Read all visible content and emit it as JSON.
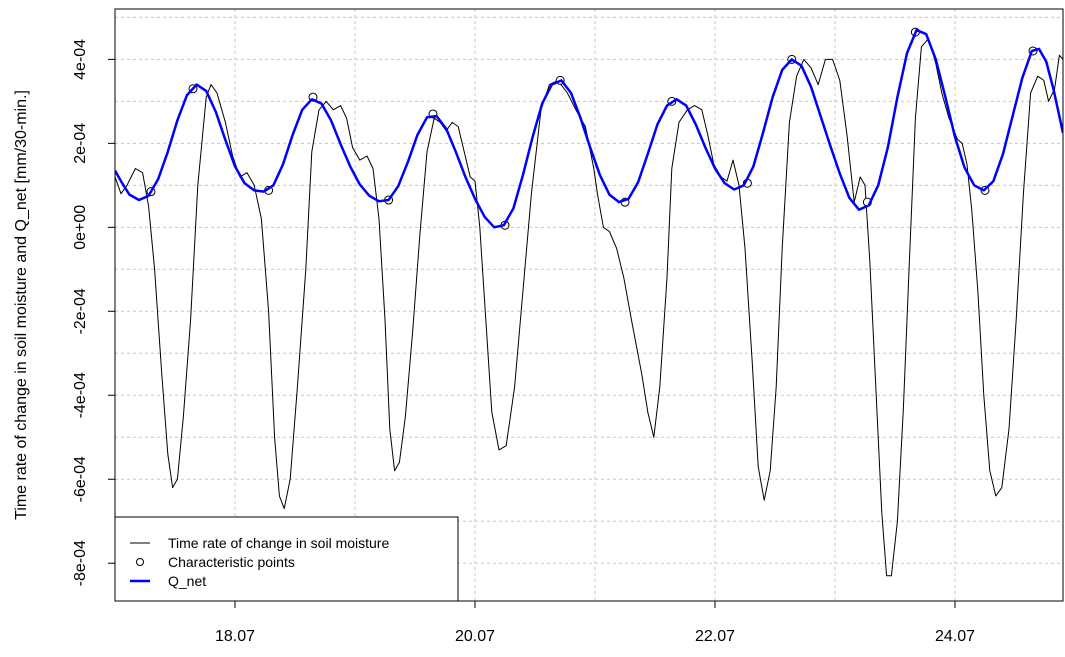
{
  "chart_data": {
    "type": "line",
    "title": "",
    "xlabel": "",
    "ylabel": "Time rate of change in soil moisture and Q_net [mm/30-min.]",
    "x_ticks": [
      "18.07",
      "20.07",
      "22.07",
      "24.07"
    ],
    "x_tick_values": [
      18,
      20,
      22,
      24
    ],
    "xlim": [
      17.0,
      24.9
    ],
    "ylim": [
      -0.00089,
      0.00052
    ],
    "y_ticks": [
      -0.0008,
      -0.0006,
      -0.0004,
      -0.0002,
      0.0,
      0.0002,
      0.0004
    ],
    "y_tick_labels": [
      "-8e-04",
      "-6e-04",
      "-4e-04",
      "-2e-04",
      "0e+00",
      "2e-04",
      "4e-04"
    ],
    "grid": true,
    "legend_position": "bottom-left",
    "series": [
      {
        "name": "Time rate of change in soil moisture",
        "color": "#000000",
        "style": "thin-line",
        "points": [
          [
            17.0,
            0.00012
          ],
          [
            17.05,
            8e-05
          ],
          [
            17.1,
            0.0001
          ],
          [
            17.17,
            0.00014
          ],
          [
            17.23,
            0.00013
          ],
          [
            17.28,
            5e-05
          ],
          [
            17.33,
            -0.0001
          ],
          [
            17.39,
            -0.00035
          ],
          [
            17.44,
            -0.00054
          ],
          [
            17.48,
            -0.00062
          ],
          [
            17.52,
            -0.0006
          ],
          [
            17.57,
            -0.00045
          ],
          [
            17.63,
            -0.00022
          ],
          [
            17.69,
            0.0001
          ],
          [
            17.76,
            0.00031
          ],
          [
            17.8,
            0.00034
          ],
          [
            17.85,
            0.00032
          ],
          [
            17.92,
            0.00025
          ],
          [
            17.98,
            0.00017
          ],
          [
            18.04,
            0.00012
          ],
          [
            18.1,
            0.00013
          ],
          [
            18.16,
            0.0001
          ],
          [
            18.22,
            2e-05
          ],
          [
            18.28,
            -0.0002
          ],
          [
            18.33,
            -0.0005
          ],
          [
            18.37,
            -0.00064
          ],
          [
            18.41,
            -0.00067
          ],
          [
            18.46,
            -0.0006
          ],
          [
            18.52,
            -0.00038
          ],
          [
            18.59,
            -0.0001
          ],
          [
            18.64,
            0.00018
          ],
          [
            18.7,
            0.00028
          ],
          [
            18.76,
            0.0003
          ],
          [
            18.82,
            0.00028
          ],
          [
            18.88,
            0.00029
          ],
          [
            18.93,
            0.00026
          ],
          [
            18.98,
            0.00019
          ],
          [
            19.04,
            0.00016
          ],
          [
            19.1,
            0.00017
          ],
          [
            19.15,
            0.00014
          ],
          [
            19.2,
            2e-05
          ],
          [
            19.25,
            -0.00022
          ],
          [
            19.29,
            -0.00048
          ],
          [
            19.33,
            -0.00058
          ],
          [
            19.37,
            -0.00056
          ],
          [
            19.42,
            -0.00045
          ],
          [
            19.48,
            -0.00025
          ],
          [
            19.54,
            -2e-05
          ],
          [
            19.6,
            0.00018
          ],
          [
            19.66,
            0.00026
          ],
          [
            19.71,
            0.00025
          ],
          [
            19.76,
            0.00023
          ],
          [
            19.81,
            0.00025
          ],
          [
            19.86,
            0.00024
          ],
          [
            19.91,
            0.00018
          ],
          [
            19.96,
            0.00012
          ],
          [
            20.0,
            0.00011
          ],
          [
            20.04,
            0.0
          ],
          [
            20.09,
            -0.00022
          ],
          [
            20.14,
            -0.00044
          ],
          [
            20.2,
            -0.00053
          ],
          [
            20.26,
            -0.00052
          ],
          [
            20.33,
            -0.00038
          ],
          [
            20.4,
            -0.00015
          ],
          [
            20.47,
            8e-05
          ],
          [
            20.55,
            0.00028
          ],
          [
            20.62,
            0.00034
          ],
          [
            20.69,
            0.00035
          ],
          [
            20.77,
            0.00032
          ],
          [
            20.84,
            0.00028
          ],
          [
            20.92,
            0.00024
          ],
          [
            20.99,
            0.00014
          ],
          [
            21.02,
            8e-05
          ],
          [
            21.07,
            0.0
          ],
          [
            21.12,
            -1e-05
          ],
          [
            21.18,
            -5e-05
          ],
          [
            21.24,
            -0.00012
          ],
          [
            21.31,
            -0.00023
          ],
          [
            21.39,
            -0.00035
          ],
          [
            21.44,
            -0.00044
          ],
          [
            21.49,
            -0.0005
          ],
          [
            21.54,
            -0.00038
          ],
          [
            21.6,
            -0.00012
          ],
          [
            21.64,
            0.00014
          ],
          [
            21.7,
            0.00025
          ],
          [
            21.77,
            0.00028
          ],
          [
            21.83,
            0.00029
          ],
          [
            21.89,
            0.00028
          ],
          [
            21.94,
            0.00022
          ],
          [
            21.99,
            0.00015
          ],
          [
            22.05,
            0.00012
          ],
          [
            22.1,
            0.00011
          ],
          [
            22.15,
            0.00016
          ],
          [
            22.2,
            0.0001
          ],
          [
            22.25,
            -5e-05
          ],
          [
            22.31,
            -0.00032
          ],
          [
            22.36,
            -0.00057
          ],
          [
            22.41,
            -0.00065
          ],
          [
            22.46,
            -0.00058
          ],
          [
            22.51,
            -0.00038
          ],
          [
            22.56,
            -5e-05
          ],
          [
            22.62,
            0.00025
          ],
          [
            22.68,
            0.00036
          ],
          [
            22.74,
            0.0004
          ],
          [
            22.8,
            0.00038
          ],
          [
            22.86,
            0.00034
          ],
          [
            22.92,
            0.0004
          ],
          [
            22.98,
            0.0004
          ],
          [
            23.04,
            0.00035
          ],
          [
            23.1,
            0.00022
          ],
          [
            23.16,
            6e-05
          ],
          [
            23.21,
            0.00012
          ],
          [
            23.25,
            0.0001
          ],
          [
            23.29,
            -8e-05
          ],
          [
            23.34,
            -0.00038
          ],
          [
            23.39,
            -0.00068
          ],
          [
            23.43,
            -0.00083
          ],
          [
            23.47,
            -0.00083
          ],
          [
            23.52,
            -0.0007
          ],
          [
            23.57,
            -0.00043
          ],
          [
            23.62,
            -8e-05
          ],
          [
            23.67,
            0.00026
          ],
          [
            23.72,
            0.00043
          ],
          [
            23.78,
            0.00045
          ],
          [
            23.84,
            0.00039
          ],
          [
            23.89,
            0.00032
          ],
          [
            23.95,
            0.00026
          ],
          [
            24.02,
            0.00021
          ],
          [
            24.06,
            0.0002
          ],
          [
            24.1,
            0.00015
          ],
          [
            24.14,
            4e-05
          ],
          [
            24.19,
            -0.00015
          ],
          [
            24.24,
            -0.0004
          ],
          [
            24.29,
            -0.00058
          ],
          [
            24.34,
            -0.00064
          ],
          [
            24.39,
            -0.00062
          ],
          [
            24.45,
            -0.00048
          ],
          [
            24.51,
            -0.00022
          ],
          [
            24.57,
            8e-05
          ],
          [
            24.63,
            0.00032
          ],
          [
            24.69,
            0.00036
          ],
          [
            24.74,
            0.00035
          ],
          [
            24.78,
            0.0003
          ],
          [
            24.83,
            0.00033
          ],
          [
            24.87,
            0.00041
          ],
          [
            24.9,
            0.0004
          ]
        ]
      },
      {
        "name": "Characteristic points",
        "color": "#000000",
        "style": "open-circle",
        "points": [
          [
            17.3,
            8.5e-05
          ],
          [
            17.65,
            0.00033
          ],
          [
            18.28,
            8.8e-05
          ],
          [
            18.65,
            0.00031
          ],
          [
            19.28,
            6.5e-05
          ],
          [
            19.65,
            0.00027
          ],
          [
            20.25,
            5e-06
          ],
          [
            20.71,
            0.00035
          ],
          [
            21.25,
            6e-05
          ],
          [
            21.64,
            0.0003
          ],
          [
            22.27,
            0.000105
          ],
          [
            22.64,
            0.0004
          ],
          [
            23.27,
            6e-05
          ],
          [
            23.67,
            0.000465
          ],
          [
            24.25,
            8.8e-05
          ],
          [
            24.65,
            0.00042
          ]
        ]
      },
      {
        "name": "Q_net",
        "color": "#0000ff",
        "style": "thick-line",
        "points": [
          [
            17.0,
            0.000135
          ],
          [
            17.06,
            0.000105
          ],
          [
            17.12,
            7.8e-05
          ],
          [
            17.2,
            6.5e-05
          ],
          [
            17.28,
            7.5e-05
          ],
          [
            17.36,
            0.000115
          ],
          [
            17.44,
            0.00018
          ],
          [
            17.52,
            0.000255
          ],
          [
            17.6,
            0.000315
          ],
          [
            17.68,
            0.00034
          ],
          [
            17.76,
            0.000325
          ],
          [
            17.84,
            0.000275
          ],
          [
            17.92,
            0.000208
          ],
          [
            18.0,
            0.000145
          ],
          [
            18.08,
            0.000105
          ],
          [
            18.16,
            8.8e-05
          ],
          [
            18.24,
            8.5e-05
          ],
          [
            18.32,
            0.0001
          ],
          [
            18.4,
            0.00015
          ],
          [
            18.48,
            0.00022
          ],
          [
            18.56,
            0.00028
          ],
          [
            18.64,
            0.000305
          ],
          [
            18.72,
            0.000295
          ],
          [
            18.8,
            0.000255
          ],
          [
            18.88,
            0.000198
          ],
          [
            18.96,
            0.000145
          ],
          [
            19.04,
            0.000102
          ],
          [
            19.12,
            7.5e-05
          ],
          [
            19.2,
            6.2e-05
          ],
          [
            19.28,
            6.5e-05
          ],
          [
            19.36,
            9.8e-05
          ],
          [
            19.44,
            0.000155
          ],
          [
            19.52,
            0.00022
          ],
          [
            19.6,
            0.000262
          ],
          [
            19.68,
            0.000265
          ],
          [
            19.76,
            0.000235
          ],
          [
            19.84,
            0.00018
          ],
          [
            19.92,
            0.00012
          ],
          [
            20.0,
            6.8e-05
          ],
          [
            20.08,
            2.5e-05
          ],
          [
            20.16,
            0.0
          ],
          [
            20.24,
            5e-06
          ],
          [
            20.32,
            4.5e-05
          ],
          [
            20.4,
            0.000125
          ],
          [
            20.48,
            0.000215
          ],
          [
            20.56,
            0.000295
          ],
          [
            20.64,
            0.00034
          ],
          [
            20.72,
            0.00035
          ],
          [
            20.8,
            0.00032
          ],
          [
            20.88,
            0.00026
          ],
          [
            20.96,
            0.00019
          ],
          [
            21.04,
            0.000125
          ],
          [
            21.12,
            7.8e-05
          ],
          [
            21.2,
            6e-05
          ],
          [
            21.28,
            6.8e-05
          ],
          [
            21.36,
            0.000108
          ],
          [
            21.44,
            0.000175
          ],
          [
            21.52,
            0.000245
          ],
          [
            21.6,
            0.00029
          ],
          [
            21.68,
            0.000305
          ],
          [
            21.76,
            0.00029
          ],
          [
            21.84,
            0.000245
          ],
          [
            21.92,
            0.00019
          ],
          [
            22.0,
            0.00014
          ],
          [
            22.08,
            0.000105
          ],
          [
            22.16,
            9e-05
          ],
          [
            22.24,
            0.0001
          ],
          [
            22.32,
            0.000145
          ],
          [
            22.4,
            0.000225
          ],
          [
            22.48,
            0.00031
          ],
          [
            22.56,
            0.000375
          ],
          [
            22.64,
            0.0004
          ],
          [
            22.72,
            0.000385
          ],
          [
            22.8,
            0.000335
          ],
          [
            22.88,
            0.000265
          ],
          [
            22.96,
            0.000195
          ],
          [
            23.04,
            0.000128
          ],
          [
            23.12,
            7e-05
          ],
          [
            23.2,
            4.2e-05
          ],
          [
            23.28,
            5.2e-05
          ],
          [
            23.36,
            0.0001
          ],
          [
            23.44,
            0.00019
          ],
          [
            23.52,
            0.00031
          ],
          [
            23.6,
            0.000415
          ],
          [
            23.68,
            0.00047
          ],
          [
            23.76,
            0.00046
          ],
          [
            23.84,
            0.0004
          ],
          [
            23.92,
            0.00031
          ],
          [
            24.0,
            0.000215
          ],
          [
            24.08,
            0.000142
          ],
          [
            24.16,
            0.0001
          ],
          [
            24.24,
            8.8e-05
          ],
          [
            24.32,
            0.00011
          ],
          [
            24.4,
            0.000175
          ],
          [
            24.48,
            0.000265
          ],
          [
            24.56,
            0.000355
          ],
          [
            24.64,
            0.00042
          ],
          [
            24.7,
            0.000425
          ],
          [
            24.76,
            0.000395
          ],
          [
            24.82,
            0.00033
          ],
          [
            24.9,
            0.000225
          ]
        ]
      }
    ]
  }
}
